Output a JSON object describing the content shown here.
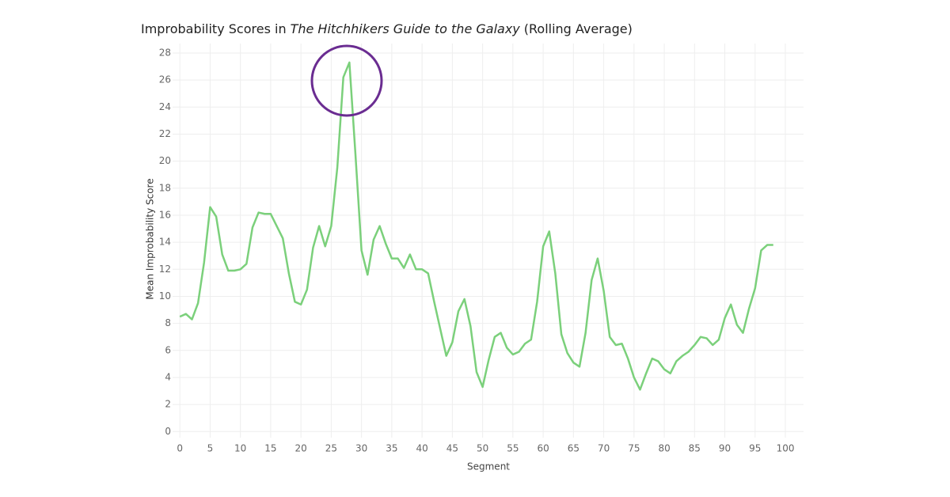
{
  "chart_data": {
    "type": "line",
    "title": [
      "Improbability Scores in",
      "The Hitchhikers Guide to the Galaxy",
      "(Rolling Average)"
    ],
    "title_italic": [
      false,
      true,
      false
    ],
    "x_label": "Segment",
    "y_label": "Mean Improbability Score",
    "x": [
      0,
      1,
      2,
      3,
      4,
      5,
      6,
      7,
      8,
      9,
      10,
      11,
      12,
      13,
      14,
      15,
      16,
      17,
      18,
      19,
      20,
      21,
      22,
      23,
      24,
      25,
      26,
      27,
      28,
      29,
      30,
      31,
      32,
      33,
      34,
      35,
      36,
      37,
      38,
      39,
      40,
      41,
      42,
      43,
      44,
      45,
      46,
      47,
      48,
      49,
      50,
      51,
      52,
      53,
      54,
      55,
      56,
      57,
      58,
      59,
      60,
      61,
      62,
      63,
      64,
      65,
      66,
      67,
      68,
      69,
      70,
      71,
      72,
      73,
      74,
      75,
      76,
      77,
      78,
      79,
      80,
      81,
      82,
      83,
      84,
      85,
      86,
      87,
      88,
      89,
      90,
      91,
      92,
      93,
      94,
      95,
      96,
      97,
      98
    ],
    "series": [
      {
        "color": "#7bd07b",
        "values": [
          8.5,
          8.7,
          8.3,
          9.5,
          12.5,
          16.6,
          15.9,
          13.1,
          11.9,
          11.9,
          12.0,
          12.4,
          15.1,
          16.2,
          16.1,
          16.1,
          15.2,
          14.3,
          11.7,
          9.6,
          9.4,
          10.5,
          13.6,
          15.2,
          13.7,
          15.2,
          19.5,
          26.2,
          27.3,
          20.5,
          13.4,
          11.6,
          14.2,
          15.2,
          13.9,
          12.8,
          12.8,
          12.1,
          13.1,
          12.0,
          12.0,
          11.7,
          9.6,
          7.6,
          5.6,
          6.6,
          8.9,
          9.8,
          7.8,
          4.4,
          3.3,
          5.3,
          7.0,
          7.3,
          6.2,
          5.7,
          5.9,
          6.5,
          6.8,
          9.6,
          13.7,
          14.8,
          11.7,
          7.2,
          5.8,
          5.1,
          4.8,
          7.3,
          11.2,
          12.8,
          10.4,
          7.0,
          6.4,
          6.5,
          5.4,
          4.0,
          3.1,
          4.3,
          5.4,
          5.2,
          4.6,
          4.3,
          5.2,
          5.6,
          5.9,
          6.4,
          7.0,
          6.9,
          6.4,
          6.8,
          8.4,
          9.4,
          7.9,
          7.3,
          9.1,
          10.6,
          13.4,
          13.8,
          13.8
        ]
      }
    ],
    "xlim": [
      -1.2,
      103
    ],
    "ylim": [
      -0.45,
      28.7
    ],
    "xticks": [
      0,
      5,
      10,
      15,
      20,
      25,
      30,
      35,
      40,
      45,
      50,
      55,
      60,
      65,
      70,
      75,
      80,
      85,
      90,
      95,
      100
    ],
    "yticks": [
      0,
      2,
      4,
      6,
      8,
      10,
      12,
      14,
      16,
      18,
      20,
      22,
      24,
      26,
      28
    ],
    "grid": true
  }
}
